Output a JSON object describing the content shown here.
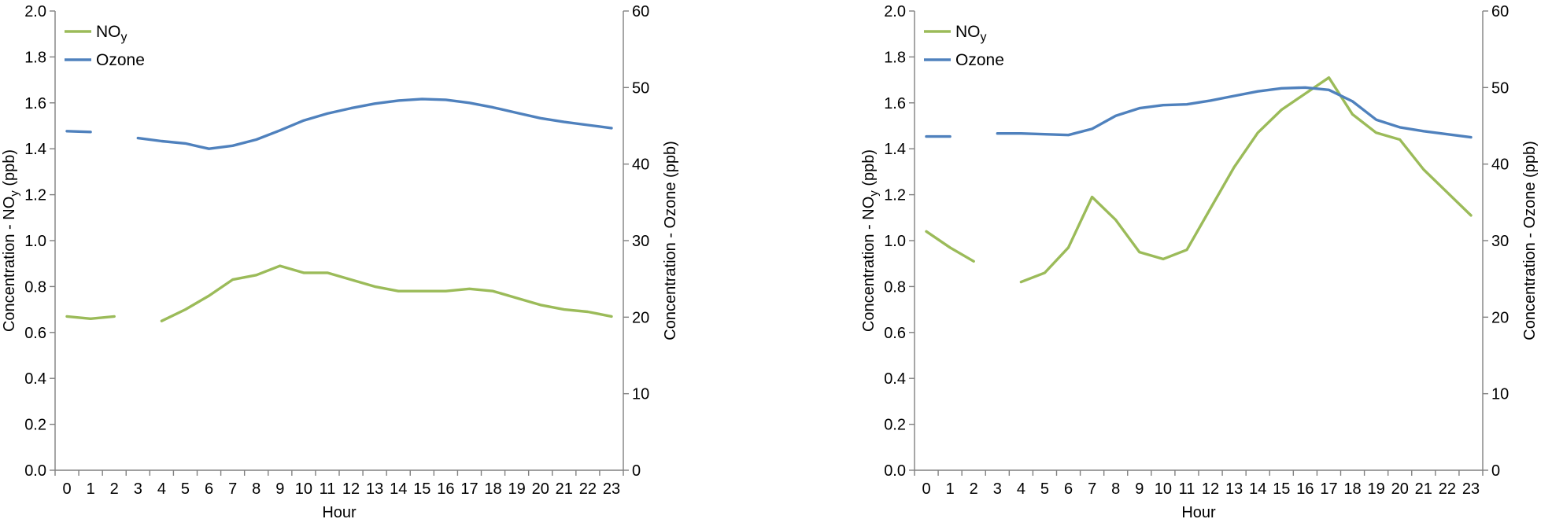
{
  "style": {
    "background": "#ffffff",
    "text_color": "#000000",
    "axis_color": "#808080",
    "noy_color": "#9BBB59",
    "ozone_color": "#4F81BD"
  },
  "chart_data": [
    {
      "type": "line",
      "name": "diurnal-profile-left",
      "xlabel": "Hour",
      "ylabel_left": [
        {
          "t": "Concentration - NO"
        },
        {
          "t": "y",
          "sub": true
        },
        {
          "t": " (ppb)"
        }
      ],
      "ylabel_right": [
        {
          "t": "Concentration - Ozone (ppb)"
        }
      ],
      "ylim_left": [
        0,
        2.0
      ],
      "ylim_right": [
        0,
        60
      ],
      "yticks_left": [
        "0.0",
        "0.2",
        "0.4",
        "0.6",
        "0.8",
        "1.0",
        "1.2",
        "1.4",
        "1.6",
        "1.8",
        "2.0"
      ],
      "yticks_right": [
        "0",
        "10",
        "20",
        "30",
        "40",
        "50",
        "60"
      ],
      "x": [
        "0",
        "1",
        "2",
        "3",
        "4",
        "5",
        "6",
        "7",
        "8",
        "9",
        "10",
        "11",
        "12",
        "13",
        "14",
        "15",
        "16",
        "17",
        "18",
        "19",
        "20",
        "21",
        "22",
        "23"
      ],
      "legend_position": "top-left",
      "grid": false,
      "series": [
        {
          "id": "noy",
          "label_parts": [
            {
              "t": "NO"
            },
            {
              "t": "y",
              "sub": true
            }
          ],
          "axis": "left",
          "color": "#9BBB59",
          "values": [
            0.67,
            0.66,
            0.67,
            null,
            0.65,
            0.7,
            0.76,
            0.83,
            0.85,
            0.89,
            0.86,
            0.86,
            0.83,
            0.8,
            0.78,
            0.78,
            0.78,
            0.79,
            0.78,
            0.75,
            0.72,
            0.7,
            0.69,
            0.67
          ]
        },
        {
          "id": "ozone",
          "label_parts": [
            {
              "t": "Ozone"
            }
          ],
          "axis": "right",
          "color": "#4F81BD",
          "values": [
            44.3,
            44.2,
            null,
            43.4,
            43.0,
            42.7,
            42.0,
            42.4,
            43.2,
            44.4,
            45.7,
            46.6,
            47.3,
            47.9,
            48.3,
            48.5,
            48.4,
            48.0,
            47.4,
            46.7,
            46.0,
            45.5,
            45.1,
            44.7
          ]
        }
      ]
    },
    {
      "type": "line",
      "name": "diurnal-profile-right",
      "xlabel": "Hour",
      "ylabel_left": [
        {
          "t": "Concentration - NO"
        },
        {
          "t": "y",
          "sub": true
        },
        {
          "t": " (ppb)"
        }
      ],
      "ylabel_right": [
        {
          "t": "Concentration - Ozone (ppb)"
        }
      ],
      "ylim_left": [
        0,
        2.0
      ],
      "ylim_right": [
        0,
        60
      ],
      "yticks_left": [
        "0.0",
        "0.2",
        "0.4",
        "0.6",
        "0.8",
        "1.0",
        "1.2",
        "1.4",
        "1.6",
        "1.8",
        "2.0"
      ],
      "yticks_right": [
        "0",
        "10",
        "20",
        "30",
        "40",
        "50",
        "60"
      ],
      "x": [
        "0",
        "1",
        "2",
        "3",
        "4",
        "5",
        "6",
        "7",
        "8",
        "9",
        "10",
        "11",
        "12",
        "13",
        "14",
        "15",
        "16",
        "17",
        "18",
        "19",
        "20",
        "21",
        "22",
        "23"
      ],
      "legend_position": "top-left",
      "grid": false,
      "series": [
        {
          "id": "noy",
          "label_parts": [
            {
              "t": "NO"
            },
            {
              "t": "y",
              "sub": true
            }
          ],
          "axis": "left",
          "color": "#9BBB59",
          "values": [
            1.04,
            0.97,
            0.91,
            null,
            0.82,
            0.86,
            0.97,
            1.19,
            1.09,
            0.95,
            0.92,
            0.96,
            1.14,
            1.32,
            1.47,
            1.57,
            1.64,
            1.71,
            1.55,
            1.47,
            1.44,
            1.31,
            1.21,
            1.11
          ]
        },
        {
          "id": "ozone",
          "label_parts": [
            {
              "t": "Ozone"
            }
          ],
          "axis": "right",
          "color": "#4F81BD",
          "values": [
            43.6,
            43.6,
            null,
            44.0,
            44.0,
            43.9,
            43.8,
            44.6,
            46.3,
            47.3,
            47.7,
            47.8,
            48.3,
            48.9,
            49.5,
            49.9,
            50.0,
            49.7,
            48.2,
            45.8,
            44.8,
            44.3,
            43.9,
            43.5
          ]
        }
      ]
    }
  ]
}
